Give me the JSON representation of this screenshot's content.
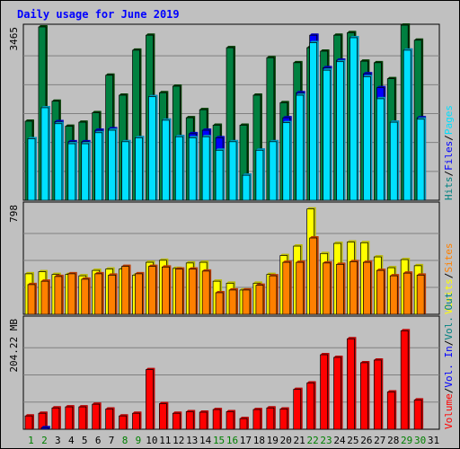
{
  "title": "Daily usage for June 2019",
  "colors": {
    "hits": "#008040",
    "files": "#0000ff",
    "pages": "#00e0ff",
    "visits": "#ffff00",
    "sites": "#ff8000",
    "vol_in": "#008080",
    "vol_out": "#008040",
    "volume": "#ff0000",
    "weekend_label": "#008000"
  },
  "chart_data": [
    {
      "type": "bar",
      "panel": "hits-files-pages",
      "ylabel_value": "3465",
      "legend": [
        {
          "label": "Hits",
          "color": "#008080"
        },
        {
          "label": "/",
          "color": "#000000"
        },
        {
          "label": "Files",
          "color": "#0000ff"
        },
        {
          "label": "/",
          "color": "#000000"
        },
        {
          "label": "Pages",
          "color": "#00e0ff"
        }
      ],
      "ylim": [
        0,
        3465
      ],
      "categories": [
        "1",
        "2",
        "3",
        "4",
        "5",
        "6",
        "7",
        "8",
        "9",
        "10",
        "11",
        "12",
        "13",
        "14",
        "15",
        "16",
        "17",
        "18",
        "19",
        "20",
        "21",
        "22",
        "23",
        "24",
        "25",
        "26",
        "27",
        "28",
        "29",
        "30",
        "31"
      ],
      "series": [
        {
          "name": "Hits",
          "values": [
            1580,
            3465,
            1980,
            1480,
            1560,
            1750,
            2500,
            2100,
            3000,
            3300,
            2150,
            2280,
            1650,
            1810,
            1500,
            3050,
            1500,
            2100,
            2850,
            1950,
            2750,
            3050,
            2980,
            3300,
            3350,
            2780,
            2750,
            2430,
            3500,
            3200,
            0
          ]
        },
        {
          "name": "Files",
          "values": [
            1230,
            1850,
            1570,
            1170,
            1170,
            1400,
            1430,
            1170,
            1250,
            2070,
            1600,
            1270,
            1330,
            1400,
            1250,
            1170,
            500,
            1000,
            1170,
            1650,
            2150,
            3300,
            2650,
            2800,
            3250,
            2530,
            2250,
            1560,
            3000,
            1650,
            0
          ]
        },
        {
          "name": "Pages",
          "values": [
            1230,
            1850,
            1530,
            1130,
            1130,
            1350,
            1400,
            1170,
            1250,
            2070,
            1600,
            1270,
            1250,
            1270,
            1000,
            1170,
            500,
            1000,
            1170,
            1550,
            2100,
            3150,
            2600,
            2770,
            3250,
            2470,
            2030,
            1560,
            3000,
            1620,
            0
          ]
        }
      ]
    },
    {
      "type": "bar",
      "panel": "visits-sites",
      "ylabel_value": "798",
      "legend": [
        {
          "label": "Visits",
          "color": "#ffff00"
        },
        {
          "label": "/",
          "color": "#000000"
        },
        {
          "label": "Sites",
          "color": "#ff8000"
        }
      ],
      "ylim": [
        0,
        798
      ],
      "categories": [
        "1",
        "2",
        "3",
        "4",
        "5",
        "6",
        "7",
        "8",
        "9",
        "10",
        "11",
        "12",
        "13",
        "14",
        "15",
        "16",
        "17",
        "18",
        "19",
        "20",
        "21",
        "22",
        "23",
        "24",
        "25",
        "26",
        "27",
        "28",
        "29",
        "30",
        "31"
      ],
      "series": [
        {
          "name": "Visits",
          "values": [
            300,
            315,
            295,
            295,
            285,
            325,
            335,
            335,
            290,
            385,
            400,
            340,
            380,
            385,
            245,
            230,
            180,
            230,
            295,
            435,
            505,
            780,
            450,
            525,
            535,
            530,
            425,
            345,
            405,
            360,
            0
          ]
        },
        {
          "name": "Sites",
          "values": [
            220,
            245,
            280,
            300,
            260,
            300,
            290,
            355,
            300,
            355,
            350,
            335,
            335,
            320,
            160,
            180,
            180,
            215,
            285,
            385,
            385,
            565,
            380,
            370,
            390,
            385,
            325,
            285,
            305,
            290,
            0
          ]
        }
      ]
    },
    {
      "type": "bar",
      "panel": "volume",
      "ylabel_value": "204.22 MB",
      "legend": [
        {
          "label": "Volume",
          "color": "#ff0000"
        },
        {
          "label": "/",
          "color": "#000000"
        },
        {
          "label": "Vol. In",
          "color": "#0000ff"
        },
        {
          "label": "/",
          "color": "#000000"
        },
        {
          "label": "Vol. Out",
          "color": "#008080"
        }
      ],
      "ylim": [
        0,
        204.22
      ],
      "categories": [
        "1",
        "2",
        "3",
        "4",
        "5",
        "6",
        "7",
        "8",
        "9",
        "10",
        "11",
        "12",
        "13",
        "14",
        "15",
        "16",
        "17",
        "18",
        "19",
        "20",
        "21",
        "22",
        "23",
        "24",
        "25",
        "26",
        "27",
        "28",
        "29",
        "30",
        "31"
      ],
      "series": [
        {
          "name": "Volume",
          "values": [
            25,
            30,
            40,
            42,
            42,
            47,
            38,
            25,
            30,
            112,
            48,
            30,
            33,
            32,
            37,
            33,
            20,
            37,
            40,
            38,
            75,
            87,
            140,
            135,
            170,
            125,
            130,
            70,
            185,
            55,
            0
          ]
        },
        {
          "name": "Vol. In",
          "values": [
            0,
            3,
            0,
            0,
            0,
            0,
            0,
            0,
            0,
            0,
            0,
            0,
            0,
            0,
            0,
            0,
            0,
            0,
            0,
            0,
            0,
            0,
            0,
            0,
            0,
            0,
            0,
            0,
            0,
            0,
            0
          ]
        }
      ]
    }
  ],
  "x_axis": {
    "labels": [
      "1",
      "2",
      "3",
      "4",
      "5",
      "6",
      "7",
      "8",
      "9",
      "10",
      "11",
      "12",
      "13",
      "14",
      "15",
      "16",
      "17",
      "18",
      "19",
      "20",
      "21",
      "22",
      "23",
      "24",
      "25",
      "26",
      "27",
      "28",
      "29",
      "30",
      "31"
    ],
    "weekend_days": [
      "1",
      "2",
      "8",
      "9",
      "15",
      "16",
      "22",
      "23",
      "29",
      "30"
    ]
  }
}
